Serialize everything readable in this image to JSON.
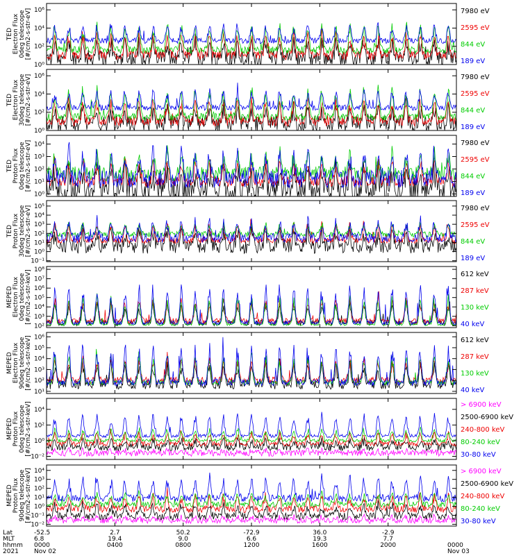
{
  "figure": {
    "x_axis": {
      "row_labels": [
        "Lat",
        "MLT",
        "hhmm",
        "2021"
      ],
      "ticks": [
        {
          "lat": "-52.5",
          "mlt": "6.8",
          "hhmm": "0000",
          "date": "Nov 02"
        },
        {
          "lat": "2.7",
          "mlt": "19.4",
          "hhmm": "0400",
          "date": ""
        },
        {
          "lat": "50.2",
          "mlt": "9.0",
          "hhmm": "0800",
          "date": ""
        },
        {
          "lat": "-72.9",
          "mlt": "6.6",
          "hhmm": "1200",
          "date": ""
        },
        {
          "lat": "36.0",
          "mlt": "19.3",
          "hhmm": "1600",
          "date": ""
        },
        {
          "lat": "-2.9",
          "mlt": "7.7",
          "hhmm": "2000",
          "date": ""
        },
        {
          "lat": "",
          "mlt": "",
          "hhmm": "0000",
          "date": "Nov 03"
        }
      ]
    }
  },
  "chart_data": [
    {
      "type": "line",
      "ylabel": [
        "TED",
        "Electron Flux",
        "0deg telescope",
        "[#/cm2-s-str-eV]"
      ],
      "y_scale": "log",
      "ytick_exponents": [
        0,
        2,
        4,
        6
      ],
      "ylim_exp": [
        0,
        6.7
      ],
      "series": [
        {
          "name": "7980 eV",
          "color": "#000000",
          "base_exp": 0.7,
          "peak_exp": 2.8,
          "noise": 0.9
        },
        {
          "name": "2595 eV",
          "color": "#ee0000",
          "base_exp": 1.0,
          "peak_exp": 3.6,
          "noise": 0.5
        },
        {
          "name": "844 eV",
          "color": "#00cc00",
          "base_exp": 1.6,
          "peak_exp": 4.6,
          "noise": 0.4
        },
        {
          "name": "189 eV",
          "color": "#0000ee",
          "base_exp": 2.6,
          "peak_exp": 4.6,
          "noise": 0.3
        }
      ]
    },
    {
      "type": "line",
      "ylabel": [
        "TED",
        "Electron Flux",
        "30deg telescope",
        "[#/cm2-s-str-eV]"
      ],
      "y_scale": "log",
      "ytick_exponents": [
        0,
        2,
        4,
        6
      ],
      "ylim_exp": [
        0,
        6.7
      ],
      "series": [
        {
          "name": "7980 eV",
          "color": "#000000",
          "base_exp": 0.7,
          "peak_exp": 2.8,
          "noise": 0.9
        },
        {
          "name": "2595 eV",
          "color": "#ee0000",
          "base_exp": 1.0,
          "peak_exp": 3.6,
          "noise": 0.5
        },
        {
          "name": "844 eV",
          "color": "#00cc00",
          "base_exp": 1.5,
          "peak_exp": 4.8,
          "noise": 0.4
        },
        {
          "name": "189 eV",
          "color": "#0000ee",
          "base_exp": 2.5,
          "peak_exp": 4.6,
          "noise": 0.3
        }
      ]
    },
    {
      "type": "line",
      "ylabel": [
        "TED",
        "Proton Flux",
        "0deg telescope",
        "[#/cm2-s-str-eV]"
      ],
      "y_scale": "log",
      "ytick_exponents": [
        0,
        1,
        2,
        3,
        4
      ],
      "ylim_exp": [
        -0.2,
        4.7
      ],
      "series": [
        {
          "name": "7980 eV",
          "color": "#000000",
          "base_exp": 0.3,
          "peak_exp": 2.2,
          "noise": 1.0
        },
        {
          "name": "2595 eV",
          "color": "#ee0000",
          "base_exp": 1.0,
          "peak_exp": 2.8,
          "noise": 0.4
        },
        {
          "name": "844 eV",
          "color": "#00cc00",
          "base_exp": 1.6,
          "peak_exp": 3.4,
          "noise": 0.6
        },
        {
          "name": "189 eV",
          "color": "#0000ee",
          "base_exp": 1.2,
          "peak_exp": 3.6,
          "noise": 0.7
        }
      ]
    },
    {
      "type": "line",
      "ylabel": [
        "TED",
        "Proton Flux",
        "30deg telescope",
        "[#/cm2-s-str-eV]"
      ],
      "y_scale": "log",
      "ytick_exponents": [
        -1,
        0,
        1,
        2,
        3,
        4,
        5
      ],
      "ylim_exp": [
        -1.1,
        5.6
      ],
      "series": [
        {
          "name": "7980 eV",
          "color": "#000000",
          "base_exp": 0.6,
          "peak_exp": 2.4,
          "noise": 0.8
        },
        {
          "name": "2595 eV",
          "color": "#ee0000",
          "base_exp": 1.2,
          "peak_exp": 3.2,
          "noise": 0.3
        },
        {
          "name": "844 eV",
          "color": "#00cc00",
          "base_exp": 1.9,
          "peak_exp": 3.2,
          "noise": 0.3
        },
        {
          "name": "189 eV",
          "color": "#0000ee",
          "base_exp": 1.5,
          "peak_exp": 3.6,
          "noise": 0.5
        }
      ]
    },
    {
      "type": "line",
      "ylabel": [
        "MEPED",
        "Electron Flux",
        "0deg telescope",
        "[#/cm2-s-str-keV]"
      ],
      "y_scale": "log",
      "ytick_exponents": [
        2,
        3,
        4,
        5,
        6,
        7,
        8
      ],
      "ylim_exp": [
        1.8,
        8.3
      ],
      "series": [
        {
          "name": "612 keV",
          "color": "#000000",
          "base_exp": 2.3,
          "peak_exp": 4.6,
          "noise": 0.3
        },
        {
          "name": "287 keV",
          "color": "#ee0000",
          "base_exp": 2.5,
          "peak_exp": 5.0,
          "noise": 0.3
        },
        {
          "name": "130 keV",
          "color": "#00cc00",
          "base_exp": 2.1,
          "peak_exp": 5.4,
          "noise": 0.1
        },
        {
          "name": "40 keV",
          "color": "#0000ee",
          "base_exp": 2.3,
          "peak_exp": 6.6,
          "noise": 0.2
        }
      ]
    },
    {
      "type": "line",
      "ylabel": [
        "MEPED",
        "Electron Flux",
        "90deg telescope",
        "[#/cm2-s-str-keV]"
      ],
      "y_scale": "log",
      "ytick_exponents": [
        1,
        2,
        3,
        4,
        5,
        6
      ],
      "ylim_exp": [
        0.8,
        6.4
      ],
      "series": [
        {
          "name": "612 keV",
          "color": "#000000",
          "base_exp": 1.6,
          "peak_exp": 3.8,
          "noise": 0.4
        },
        {
          "name": "287 keV",
          "color": "#ee0000",
          "base_exp": 2.0,
          "peak_exp": 4.2,
          "noise": 0.3
        },
        {
          "name": "130 keV",
          "color": "#00cc00",
          "base_exp": 1.8,
          "peak_exp": 4.6,
          "noise": 0.2
        },
        {
          "name": "40 keV",
          "color": "#0000ee",
          "base_exp": 1.8,
          "peak_exp": 5.4,
          "noise": 0.3
        }
      ]
    },
    {
      "type": "line",
      "ylabel": [
        "MEPED",
        "Proton Flux",
        "0deg telescope",
        "[#/cm2-s-str-keV]"
      ],
      "y_scale": "log",
      "ytick_exponents": [
        -2,
        0,
        2,
        4
      ],
      "ylim_exp": [
        -2.4,
        5.4
      ],
      "series": [
        {
          "name": "> 6900 keV",
          "color": "#ff00ff",
          "base_exp": -1.6,
          "peak_exp": -1.2,
          "noise": 0.4
        },
        {
          "name": "2500-6900 keV",
          "color": "#000000",
          "base_exp": -0.8,
          "peak_exp": 0.2,
          "noise": 0.5
        },
        {
          "name": "240-800 keV",
          "color": "#ee0000",
          "base_exp": -0.4,
          "peak_exp": 1.2,
          "noise": 0.3
        },
        {
          "name": "80-240 keV",
          "color": "#00cc00",
          "base_exp": 0.0,
          "peak_exp": 1.6,
          "noise": 0.2
        },
        {
          "name": "30-80 keV",
          "color": "#0000ee",
          "base_exp": 0.6,
          "peak_exp": 3.6,
          "noise": 0.2
        }
      ]
    },
    {
      "type": "line",
      "ylabel": [
        "MEPED",
        "Proton Flux",
        "90deg telescope",
        "[#/cm2-s-str-keV]"
      ],
      "y_scale": "log",
      "ytick_exponents": [
        -2,
        -1,
        0,
        1,
        2,
        3,
        4
      ],
      "ylim_exp": [
        -2.2,
        4.6
      ],
      "series": [
        {
          "name": "> 6900 keV",
          "color": "#ff00ff",
          "base_exp": -1.6,
          "peak_exp": -1.1,
          "noise": 0.3
        },
        {
          "name": "2500-6900 keV",
          "color": "#000000",
          "base_exp": -1.1,
          "peak_exp": 0.4,
          "noise": 0.4
        },
        {
          "name": "240-800 keV",
          "color": "#ee0000",
          "base_exp": -0.3,
          "peak_exp": 1.4,
          "noise": 0.4
        },
        {
          "name": "80-240 keV",
          "color": "#00cc00",
          "base_exp": 0.2,
          "peak_exp": 1.6,
          "noise": 0.3
        },
        {
          "name": "30-80 keV",
          "color": "#0000ee",
          "base_exp": 0.9,
          "peak_exp": 3.4,
          "noise": 0.4
        }
      ]
    }
  ]
}
